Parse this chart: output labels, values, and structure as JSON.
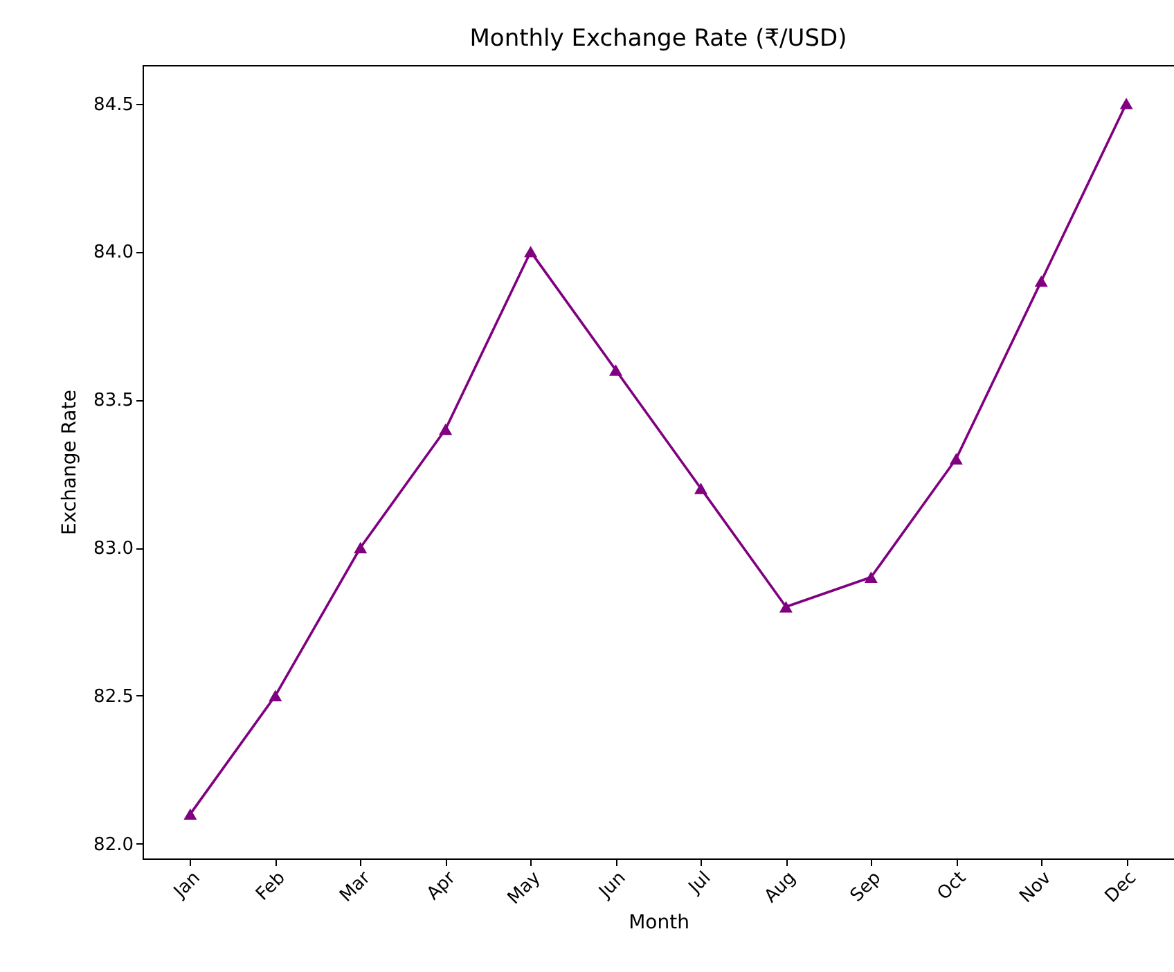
{
  "chart_data": {
    "type": "line",
    "title": "Monthly Exchange Rate (₹/USD)",
    "xlabel": "Month",
    "ylabel": "Exchange Rate",
    "categories": [
      "Jan",
      "Feb",
      "Mar",
      "Apr",
      "May",
      "Jun",
      "Jul",
      "Aug",
      "Sep",
      "Oct",
      "Nov",
      "Dec"
    ],
    "series": [
      {
        "color": "#800080",
        "values": [
          82.1,
          82.5,
          83.0,
          83.4,
          84.0,
          83.6,
          83.2,
          82.8,
          82.9,
          83.3,
          83.9,
          84.5
        ]
      }
    ],
    "ylim": [
      81.95,
      84.63
    ],
    "yticks": [
      {
        "value": 82,
        "label": "82.0"
      },
      {
        "value": 82.5,
        "label": "82.5"
      },
      {
        "value": 83,
        "label": "83.0"
      },
      {
        "value": 83.5,
        "label": "83.5"
      },
      {
        "value": 84,
        "label": "84.0"
      },
      {
        "value": 84.5,
        "label": "84.5"
      }
    ],
    "marker": "triangle",
    "line_style": "solid",
    "grid": false,
    "legend": false
  }
}
